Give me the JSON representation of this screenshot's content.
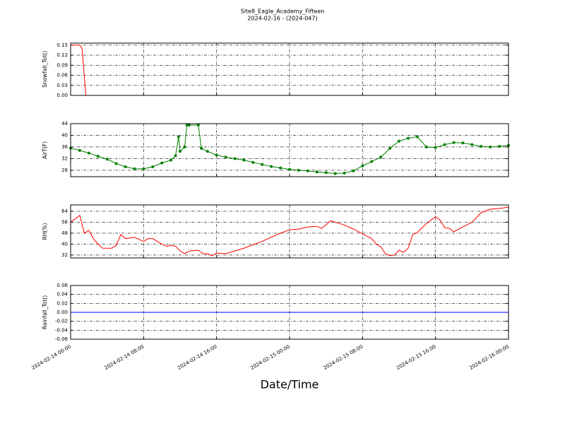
{
  "chart_data": [
    {
      "type": "line",
      "title": "Site8_Eagle_Academy_Fifteen",
      "subtitle": "2024-02-16 - (2024-047)",
      "ylabel": "Snowfall_Tot()",
      "color": "#ff0000",
      "x": [
        "2024-02-14 00:00",
        "2024-02-14 00:30",
        "2024-02-14 01:00",
        "2024-02-14 01:15",
        "2024-02-14 01:40",
        "2024-02-16 00:00"
      ],
      "values": [
        0.15,
        0.15,
        0.15,
        0.14,
        0.0,
        0.0
      ],
      "ylim": [
        0,
        0.156
      ],
      "yticks": [
        {
          "value": 0,
          "label": "0.00"
        },
        0.03,
        0.06,
        0.09,
        0.12,
        0.15
      ],
      "grid": true
    },
    {
      "type": "line",
      "ylabel": "AirT(F)",
      "color": "#008000",
      "marker": "o",
      "x": [
        "2024-02-14 00:00",
        "2024-02-14 01:00",
        "2024-02-14 02:00",
        "2024-02-14 03:00",
        "2024-02-14 04:00",
        "2024-02-14 05:00",
        "2024-02-14 06:00",
        "2024-02-14 07:00",
        "2024-02-14 08:00",
        "2024-02-14 09:00",
        "2024-02-14 10:00",
        "2024-02-14 11:00",
        "2024-02-14 11:30",
        "2024-02-14 11:50",
        "2024-02-14 12:00",
        "2024-02-14 12:30",
        "2024-02-14 12:45",
        "2024-02-14 13:00",
        "2024-02-14 14:00",
        "2024-02-14 14:20",
        "2024-02-14 15:00",
        "2024-02-14 16:00",
        "2024-02-14 17:00",
        "2024-02-14 18:00",
        "2024-02-14 19:00",
        "2024-02-14 20:00",
        "2024-02-14 21:00",
        "2024-02-14 22:00",
        "2024-02-14 23:00",
        "2024-02-15 00:00",
        "2024-02-15 01:00",
        "2024-02-15 02:00",
        "2024-02-15 03:00",
        "2024-02-15 04:00",
        "2024-02-15 05:00",
        "2024-02-15 06:00",
        "2024-02-15 07:00",
        "2024-02-15 08:00",
        "2024-02-15 09:00",
        "2024-02-15 10:00",
        "2024-02-15 11:00",
        "2024-02-15 12:00",
        "2024-02-15 13:00",
        "2024-02-15 14:00",
        "2024-02-15 15:00",
        "2024-02-15 16:00",
        "2024-02-15 17:00",
        "2024-02-15 18:00",
        "2024-02-15 19:00",
        "2024-02-15 20:00",
        "2024-02-15 21:00",
        "2024-02-15 22:00",
        "2024-02-15 23:00",
        "2024-02-16 00:00"
      ],
      "values": [
        35.6,
        34.8,
        33.9,
        32.8,
        31.8,
        30.3,
        29.2,
        28.5,
        28.5,
        29.2,
        30.5,
        31.5,
        33,
        39.5,
        34.5,
        36,
        43.5,
        43.5,
        43.5,
        35.5,
        34.5,
        33.2,
        32.5,
        32.0,
        31.5,
        30.7,
        30.0,
        29.3,
        28.8,
        28.3,
        28.0,
        27.8,
        27.4,
        27.2,
        26.9,
        27.0,
        27.8,
        29.5,
        31,
        32.5,
        35.5,
        38,
        39,
        39.5,
        36,
        35.8,
        36.8,
        37.5,
        37.4,
        36.8,
        36.2,
        36.0,
        36.2,
        36.5
      ],
      "ylim": [
        25.8,
        44
      ],
      "yticks": [
        28,
        32,
        36,
        40,
        44
      ],
      "grid": true
    },
    {
      "type": "line",
      "ylabel": "RH(%)",
      "color": "#ff0000",
      "x": [
        "2024-02-14 00:00",
        "2024-02-14 01:00",
        "2024-02-14 01:30",
        "2024-02-14 02:00",
        "2024-02-14 02:30",
        "2024-02-14 03:00",
        "2024-02-14 03:30",
        "2024-02-14 04:30",
        "2024-02-14 05:00",
        "2024-02-14 05:30",
        "2024-02-14 06:00",
        "2024-02-14 07:00",
        "2024-02-14 08:00",
        "2024-02-14 08:30",
        "2024-02-14 09:00",
        "2024-02-14 10:00",
        "2024-02-14 10:30",
        "2024-02-14 11:00",
        "2024-02-14 11:30",
        "2024-02-14 12:00",
        "2024-02-14 12:30",
        "2024-02-14 13:00",
        "2024-02-14 14:00",
        "2024-02-14 14:30",
        "2024-02-14 15:00",
        "2024-02-14 15:30",
        "2024-02-14 16:00",
        "2024-02-14 17:00",
        "2024-02-14 18:00",
        "2024-02-14 19:00",
        "2024-02-14 20:00",
        "2024-02-14 21:00",
        "2024-02-14 22:00",
        "2024-02-14 23:00",
        "2024-02-15 00:00",
        "2024-02-15 01:00",
        "2024-02-15 02:00",
        "2024-02-15 03:00",
        "2024-02-15 03:30",
        "2024-02-15 04:00",
        "2024-02-15 04:30",
        "2024-02-15 05:00",
        "2024-02-15 06:00",
        "2024-02-15 07:00",
        "2024-02-15 08:00",
        "2024-02-15 09:00",
        "2024-02-15 09:30",
        "2024-02-15 10:00",
        "2024-02-15 10:30",
        "2024-02-15 11:00",
        "2024-02-15 11:30",
        "2024-02-15 12:00",
        "2024-02-15 12:30",
        "2024-02-15 13:00",
        "2024-02-15 13:30",
        "2024-02-15 14:00",
        "2024-02-15 15:00",
        "2024-02-15 16:00",
        "2024-02-15 16:30",
        "2024-02-15 17:00",
        "2024-02-15 17:30",
        "2024-02-15 18:00",
        "2024-02-15 19:00",
        "2024-02-15 20:00",
        "2024-02-15 21:00",
        "2024-02-15 22:00",
        "2024-02-15 23:00",
        "2024-02-16 00:00"
      ],
      "values": [
        56,
        61,
        48,
        50,
        44,
        40,
        37,
        37,
        39,
        47,
        44,
        45,
        42,
        44,
        44,
        40,
        38.5,
        39,
        38.5,
        35,
        33,
        35,
        35.5,
        33,
        33,
        31.5,
        33.5,
        33,
        35,
        37,
        39.5,
        42,
        45,
        48,
        50.5,
        51,
        52.5,
        53,
        51.5,
        54,
        57,
        56,
        54,
        51,
        47.5,
        44,
        40,
        38,
        33,
        31.5,
        32,
        35.5,
        34,
        37,
        47,
        48.5,
        55,
        60,
        57.5,
        52,
        51.5,
        49,
        52.5,
        56,
        63,
        65.5,
        66,
        67
      ],
      "ylim": [
        29.9,
        68.6
      ],
      "yticks": [
        32,
        40,
        48,
        56,
        64
      ],
      "grid": true
    },
    {
      "type": "line",
      "ylabel": "Rainfall_Tot()",
      "xlabel": "Date/Time",
      "color": "#0000ff",
      "x": [
        "2024-02-14 00:00",
        "2024-02-16 00:00"
      ],
      "values": [
        0,
        0
      ],
      "ylim": [
        -0.06,
        0.06
      ],
      "yticks": [
        -0.06,
        -0.04,
        -0.02,
        {
          "value": 0,
          "label": "0.00"
        },
        0.02,
        0.04,
        0.06
      ],
      "grid": true,
      "xlim": [
        "2024-02-14 00:00",
        "2024-02-16 00:00"
      ],
      "xticks": [
        "2024-02-14 00:00",
        "2024-02-14 08:00",
        "2024-02-14 16:00",
        "2024-02-15 00:00",
        "2024-02-15 08:00",
        "2024-02-15 16:00",
        "2024-02-16 00:00"
      ]
    }
  ]
}
